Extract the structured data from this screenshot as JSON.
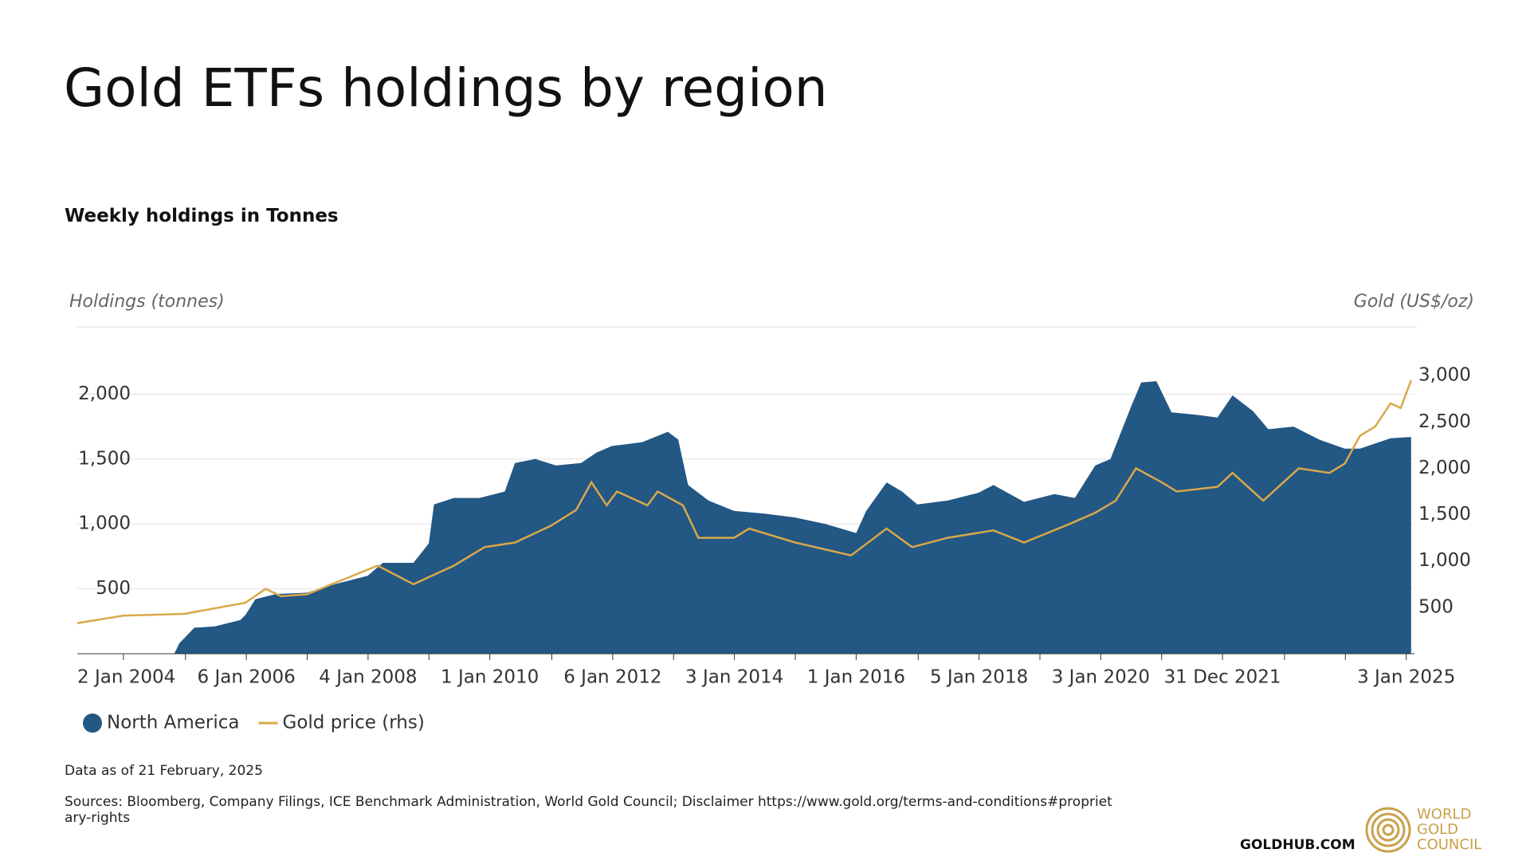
{
  "chart_data": {
    "type": "area_line",
    "title": "Gold ETFs holdings by region",
    "subtitle": "Weekly holdings in Tonnes",
    "y_label": "Holdings (tonnes)",
    "y2_label": "Gold (US$/oz)",
    "xlim": [
      "2003-04-01",
      "2025-02-21"
    ],
    "xticks": [
      {
        "value": "2004-01-02",
        "label": "2 Jan 2004"
      },
      {
        "value": "2005-01-07",
        "label": null
      },
      {
        "value": "2006-01-06",
        "label": "6 Jan 2006"
      },
      {
        "value": "2007-01-05",
        "label": null
      },
      {
        "value": "2008-01-04",
        "label": "4 Jan 2008"
      },
      {
        "value": "2009-01-02",
        "label": null
      },
      {
        "value": "2010-01-01",
        "label": "1 Jan 2010"
      },
      {
        "value": "2011-01-07",
        "label": null
      },
      {
        "value": "2012-01-06",
        "label": "6 Jan 2012"
      },
      {
        "value": "2013-01-04",
        "label": null
      },
      {
        "value": "2014-01-03",
        "label": "3 Jan 2014"
      },
      {
        "value": "2015-01-02",
        "label": null
      },
      {
        "value": "2016-01-01",
        "label": "1 Jan 2016"
      },
      {
        "value": "2017-01-06",
        "label": null
      },
      {
        "value": "2018-01-05",
        "label": "5 Jan 2018"
      },
      {
        "value": "2019-01-04",
        "label": null
      },
      {
        "value": "2020-01-03",
        "label": "3 Jan 2020"
      },
      {
        "value": "2021-01-01",
        "label": null
      },
      {
        "value": "2021-12-31",
        "label": "31 Dec 2021"
      },
      {
        "value": "2023-01-06",
        "label": null
      },
      {
        "value": "2024-01-05",
        "label": null
      },
      {
        "value": "2025-01-03",
        "label": "3 Jan 2025"
      }
    ],
    "ylim": [
      0,
      2500
    ],
    "yticks": [
      {
        "value": 500,
        "label": "500"
      },
      {
        "value": 1000,
        "label": "1,000"
      },
      {
        "value": 1500,
        "label": "1,500"
      },
      {
        "value": 2000,
        "label": "2,000"
      }
    ],
    "y2lim": [
      0,
      3500
    ],
    "y2ticks": [
      {
        "value": 500,
        "label": "500"
      },
      {
        "value": 1000,
        "label": "1,000"
      },
      {
        "value": 1500,
        "label": "1,500"
      },
      {
        "value": 2000,
        "label": "2,000"
      },
      {
        "value": 2500,
        "label": "2,500"
      },
      {
        "value": 3000,
        "label": "3,000"
      }
    ],
    "grid": true,
    "series": [
      {
        "name": "North America",
        "color": "#235784",
        "kind": "area",
        "x": [
          "2003-04",
          "2004-11",
          "2004-12",
          "2005-03",
          "2005-07",
          "2005-12",
          "2006-01",
          "2006-03",
          "2006-07",
          "2007-01",
          "2007-07",
          "2008-01",
          "2008-04",
          "2008-10",
          "2009-01",
          "2009-02",
          "2009-06",
          "2009-11",
          "2010-04",
          "2010-06",
          "2010-10",
          "2011-02",
          "2011-07",
          "2011-10",
          "2012-01",
          "2012-07",
          "2012-12",
          "2013-02",
          "2013-04",
          "2013-08",
          "2014-01",
          "2014-07",
          "2015-01",
          "2015-07",
          "2016-01",
          "2016-03",
          "2016-07",
          "2016-10",
          "2017-01",
          "2017-07",
          "2018-01",
          "2018-04",
          "2018-10",
          "2019-04",
          "2019-08",
          "2019-12",
          "2020-03",
          "2020-07",
          "2020-09",
          "2020-12",
          "2021-03",
          "2021-08",
          "2021-12",
          "2022-03",
          "2022-07",
          "2022-10",
          "2023-03",
          "2023-08",
          "2024-01",
          "2024-04",
          "2024-10",
          "2025-02"
        ],
        "values": [
          0,
          0,
          80,
          200,
          210,
          260,
          300,
          420,
          460,
          470,
          540,
          600,
          700,
          700,
          850,
          1150,
          1200,
          1200,
          1250,
          1470,
          1500,
          1450,
          1470,
          1550,
          1600,
          1630,
          1710,
          1650,
          1300,
          1180,
          1100,
          1080,
          1050,
          1000,
          930,
          1100,
          1320,
          1250,
          1150,
          1180,
          1240,
          1300,
          1170,
          1230,
          1200,
          1450,
          1500,
          1900,
          2090,
          2100,
          1860,
          1840,
          1820,
          1990,
          1870,
          1730,
          1750,
          1650,
          1580,
          1580,
          1660,
          1670
        ]
      },
      {
        "name": "Gold price (rhs)",
        "color": "#d9a84a",
        "kind": "line",
        "axis": "y2",
        "x": [
          "2003-04",
          "2004-01",
          "2005-01",
          "2006-01",
          "2006-05",
          "2006-08",
          "2007-01",
          "2008-03",
          "2008-10",
          "2009-06",
          "2009-12",
          "2010-06",
          "2011-01",
          "2011-06",
          "2011-09",
          "2011-12",
          "2012-02",
          "2012-08",
          "2012-10",
          "2013-03",
          "2013-06",
          "2014-01",
          "2014-04",
          "2015-01",
          "2015-12",
          "2016-07",
          "2016-12",
          "2017-07",
          "2018-04",
          "2018-10",
          "2019-07",
          "2019-12",
          "2020-04",
          "2020-08",
          "2021-01",
          "2021-04",
          "2021-12",
          "2022-03",
          "2022-09",
          "2023-04",
          "2023-10",
          "2024-01",
          "2024-04",
          "2024-07",
          "2024-10",
          "2024-12",
          "2025-02"
        ],
        "values": [
          330,
          410,
          430,
          550,
          700,
          620,
          640,
          950,
          750,
          950,
          1150,
          1200,
          1380,
          1550,
          1850,
          1600,
          1750,
          1600,
          1750,
          1600,
          1250,
          1250,
          1350,
          1200,
          1060,
          1350,
          1150,
          1250,
          1330,
          1200,
          1400,
          1520,
          1650,
          2000,
          1850,
          1750,
          1800,
          1950,
          1650,
          2000,
          1950,
          2050,
          2350,
          2450,
          2700,
          2650,
          2950
        ]
      }
    ],
    "note": "Data as of 21 February, 2025",
    "sources": "Sources: Bloomberg, Company Filings, ICE Benchmark Administration, World Gold Council; Disclaimer https://www.gold.org/terms-and-conditions#proprietary-rights"
  },
  "footer": {
    "site": "GOLDHUB.COM",
    "logo": [
      "WORLD",
      "GOLD",
      "COUNCIL"
    ]
  }
}
